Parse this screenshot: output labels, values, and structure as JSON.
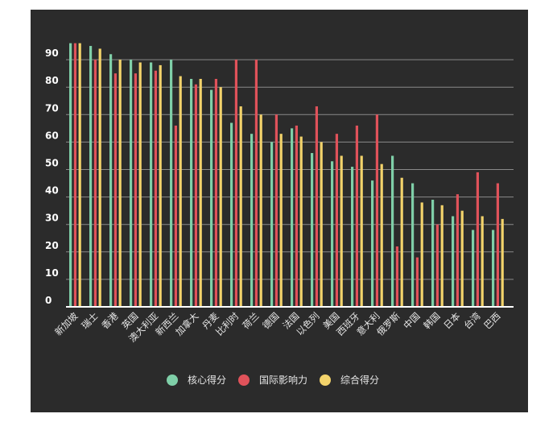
{
  "colors": {
    "background": "#2b2b2b",
    "grid": "#8a8a8a",
    "axis": "#ffffff",
    "core": "#7fcfa8",
    "influence": "#e0525a",
    "overall": "#f3d36b"
  },
  "chart_data": {
    "type": "bar",
    "ylim": [
      0,
      100
    ],
    "yticks": [
      0,
      10,
      20,
      30,
      40,
      50,
      60,
      70,
      80,
      90
    ],
    "grid": true,
    "legend_position": "bottom",
    "categories": [
      "新加坡",
      "瑞士",
      "香港",
      "英国",
      "澳大利亚",
      "新西兰",
      "加拿大",
      "丹麦",
      "比利时",
      "荷兰",
      "德国",
      "法国",
      "以色列",
      "美国",
      "西班牙",
      "意大利",
      "俄罗斯",
      "中国",
      "韩国",
      "日本",
      "台湾",
      "巴西"
    ],
    "series": [
      {
        "name": "核心得分",
        "color_key": "core",
        "values": [
          96,
          95,
          92,
          90,
          89,
          90,
          83,
          79,
          67,
          63,
          60,
          65,
          56,
          53,
          51,
          46,
          55,
          45,
          39,
          33,
          28,
          28
        ]
      },
      {
        "name": "国际影响力",
        "color_key": "influence",
        "values": [
          96,
          90,
          85,
          85,
          86,
          66,
          81,
          83,
          90,
          90,
          70,
          66,
          73,
          63,
          66,
          70,
          22,
          18,
          30,
          41,
          49,
          45
        ]
      },
      {
        "name": "综合得分",
        "color_key": "overall",
        "values": [
          96,
          94,
          90,
          89,
          88,
          84,
          83,
          80,
          73,
          70,
          63,
          62,
          60,
          55,
          55,
          52,
          47,
          38,
          37,
          35,
          33,
          32
        ]
      }
    ]
  }
}
